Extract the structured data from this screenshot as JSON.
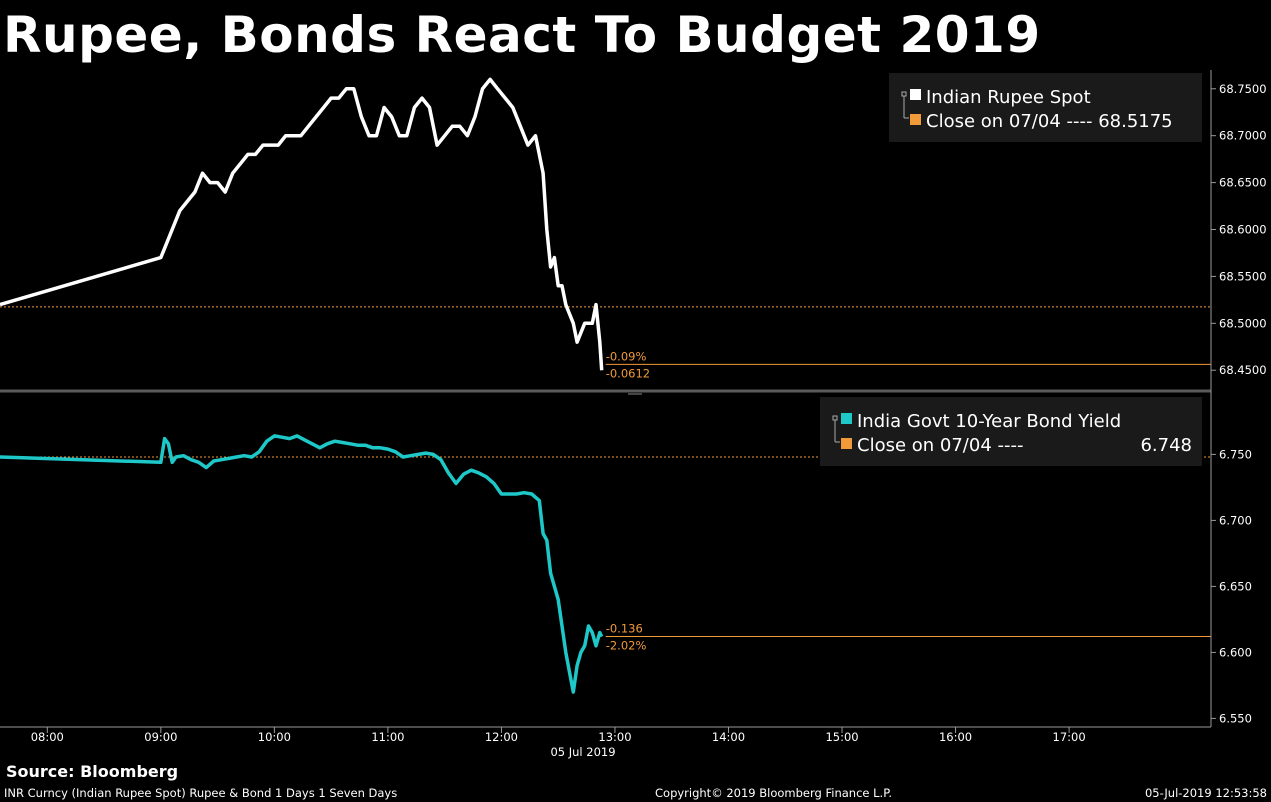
{
  "title": "Rupee, Bonds React To Budget 2019",
  "source": "Source: Bloomberg",
  "footer": {
    "left": "INR Curncy (Indian Rupee Spot) Rupee & Bond 1 Days 1 Seven Days",
    "center": "Copyright© 2019 Bloomberg Finance L.P.",
    "right": "05-Jul-2019 12:53:58"
  },
  "colors": {
    "rupee": "#ffffff",
    "bond": "#1ec8c8",
    "close": "#f09a3a",
    "ref": "#f09a3a"
  },
  "chart_data": [
    {
      "type": "line",
      "title": "",
      "legend_position": "top-right",
      "legend": {
        "series": "Indian Rupee Spot",
        "close": "Close on 07/04 ---- 68.5175"
      },
      "close_value": 68.5175,
      "last_value": 68.4563,
      "annotations": [
        "-0.09%",
        "-0.0612"
      ],
      "ylim": [
        68.43,
        68.77
      ],
      "yticks": [
        "68.4500",
        "68.5000",
        "68.5500",
        "68.6000",
        "68.6500",
        "68.7000",
        "68.7500"
      ],
      "series": [
        {
          "x": [
            "07:35",
            "09:00",
            "09:02",
            "09:06",
            "09:10",
            "09:14",
            "09:18",
            "09:22",
            "09:26",
            "09:30",
            "09:34",
            "09:38",
            "09:42",
            "09:46",
            "09:50",
            "09:54",
            "09:58",
            "10:02",
            "10:06",
            "10:10",
            "10:14",
            "10:18",
            "10:22",
            "10:26",
            "10:30",
            "10:34",
            "10:38",
            "10:42",
            "10:46",
            "10:50",
            "10:54",
            "10:58",
            "11:02",
            "11:06",
            "11:10",
            "11:14",
            "11:18",
            "11:22",
            "11:26",
            "11:30",
            "11:34",
            "11:38",
            "11:42",
            "11:46",
            "11:50",
            "11:54",
            "11:58",
            "12:02",
            "12:06",
            "12:10",
            "12:14",
            "12:18",
            "12:22",
            "12:24",
            "12:26",
            "12:28",
            "12:30",
            "12:32",
            "12:34",
            "12:36",
            "12:38",
            "12:40",
            "12:42",
            "12:44",
            "12:46",
            "12:48",
            "12:50",
            "12:52",
            "12:53"
          ],
          "values": [
            68.52,
            68.57,
            68.58,
            68.6,
            68.62,
            68.63,
            68.64,
            68.66,
            68.65,
            68.65,
            68.64,
            68.66,
            68.67,
            68.68,
            68.68,
            68.69,
            68.69,
            68.69,
            68.7,
            68.7,
            68.7,
            68.71,
            68.72,
            68.73,
            68.74,
            68.74,
            68.75,
            68.75,
            68.72,
            68.7,
            68.7,
            68.73,
            68.72,
            68.7,
            68.7,
            68.73,
            68.74,
            68.73,
            68.69,
            68.7,
            68.71,
            68.71,
            68.7,
            68.72,
            68.75,
            68.76,
            68.75,
            68.74,
            68.73,
            68.71,
            68.69,
            68.7,
            68.66,
            68.6,
            68.56,
            68.57,
            68.54,
            68.54,
            68.52,
            68.51,
            68.5,
            68.48,
            68.49,
            68.5,
            68.5,
            68.5,
            68.52,
            68.48,
            68.45
          ]
        }
      ]
    },
    {
      "type": "line",
      "title": "",
      "legend_position": "top-right",
      "legend": {
        "series": "India Govt 10-Year Bond Yield",
        "close_label": "Close on 07/04 ----",
        "close_value_label": "6.748"
      },
      "close_value": 6.748,
      "last_value": 6.612,
      "annotations": [
        "-0.136",
        "-2.02%"
      ],
      "ylim": [
        6.545,
        6.795
      ],
      "yticks": [
        "6.550",
        "6.600",
        "6.650",
        "6.700",
        "6.750"
      ],
      "series": [
        {
          "x": [
            "07:35",
            "09:00",
            "09:02",
            "09:04",
            "09:06",
            "09:08",
            "09:12",
            "09:16",
            "09:20",
            "09:24",
            "09:28",
            "09:32",
            "09:36",
            "09:40",
            "09:44",
            "09:48",
            "09:52",
            "09:56",
            "10:00",
            "10:04",
            "10:08",
            "10:12",
            "10:16",
            "10:20",
            "10:24",
            "10:28",
            "10:32",
            "10:36",
            "10:40",
            "10:44",
            "10:48",
            "10:52",
            "10:56",
            "11:00",
            "11:04",
            "11:08",
            "11:12",
            "11:16",
            "11:20",
            "11:24",
            "11:28",
            "11:32",
            "11:36",
            "11:40",
            "11:44",
            "11:48",
            "11:52",
            "11:56",
            "12:00",
            "12:04",
            "12:08",
            "12:12",
            "12:16",
            "12:20",
            "12:22",
            "12:24",
            "12:26",
            "12:28",
            "12:30",
            "12:32",
            "12:34",
            "12:36",
            "12:38",
            "12:40",
            "12:42",
            "12:44",
            "12:46",
            "12:48",
            "12:50",
            "12:52",
            "12:53"
          ],
          "values": [
            6.748,
            6.744,
            6.762,
            6.758,
            6.744,
            6.748,
            6.749,
            6.746,
            6.744,
            6.74,
            6.745,
            6.746,
            6.747,
            6.748,
            6.749,
            6.748,
            6.752,
            6.76,
            6.764,
            6.763,
            6.762,
            6.764,
            6.761,
            6.758,
            6.755,
            6.758,
            6.76,
            6.759,
            6.758,
            6.757,
            6.757,
            6.755,
            6.755,
            6.754,
            6.752,
            6.748,
            6.749,
            6.75,
            6.751,
            6.75,
            6.746,
            6.736,
            6.728,
            6.735,
            6.738,
            6.736,
            6.733,
            6.728,
            6.72,
            6.72,
            6.72,
            6.721,
            6.72,
            6.715,
            6.69,
            6.685,
            6.66,
            6.65,
            6.64,
            6.62,
            6.6,
            6.585,
            6.57,
            6.59,
            6.6,
            6.605,
            6.62,
            6.615,
            6.605,
            6.615,
            6.612
          ]
        }
      ]
    }
  ],
  "x_axis": {
    "ticks": [
      "08:00",
      "09:00",
      "10:00",
      "11:00",
      "12:00",
      "13:00",
      "14:00",
      "15:00",
      "16:00",
      "17:00"
    ],
    "date_label": "05 Jul 2019",
    "range": [
      "07:35",
      "18:15"
    ]
  }
}
